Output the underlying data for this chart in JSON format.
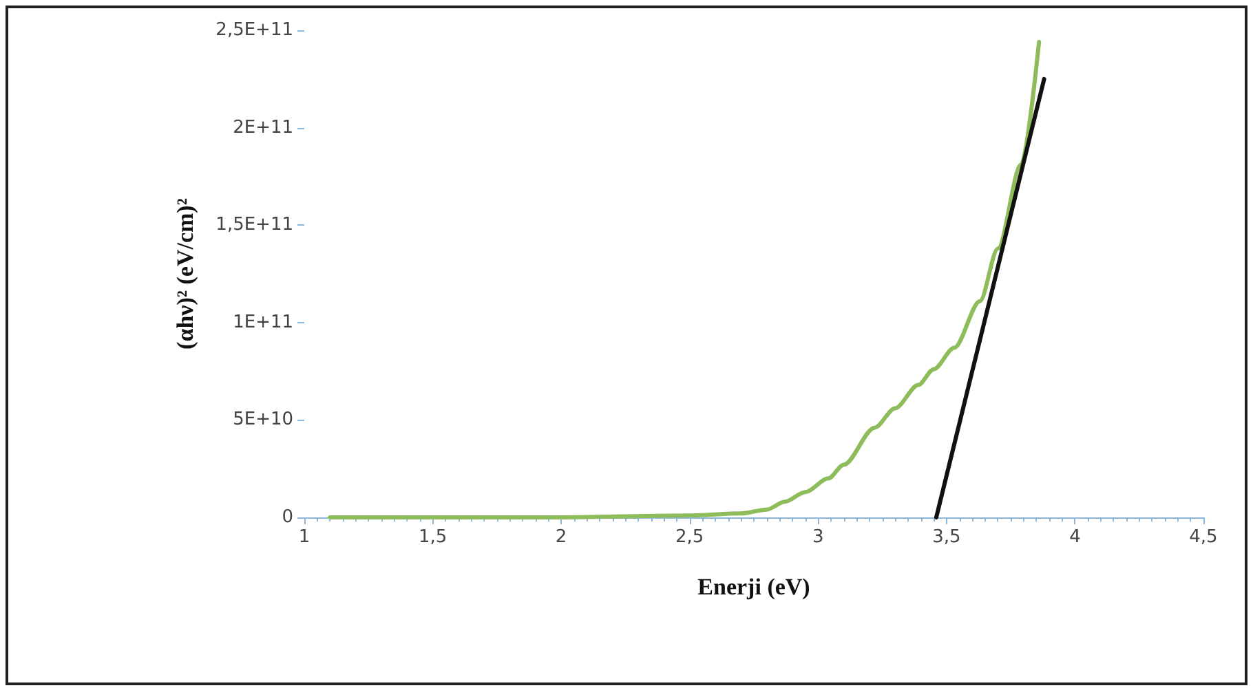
{
  "chart_data": {
    "type": "line",
    "xlabel": "Enerji (eV)",
    "ylabel": "(αhν)² (eV/cm)²",
    "series": [
      {
        "color": "#8fbc5a",
        "x": [
          1.1,
          1.5,
          2.0,
          2.5,
          2.7,
          2.8,
          2.87,
          2.95,
          3.04,
          3.1,
          3.22,
          3.3,
          3.39,
          3.45,
          3.53,
          3.63,
          3.7,
          3.79,
          3.86
        ],
        "values": [
          0,
          0,
          0,
          1000000000.0,
          2000000000.0,
          4000000000.0,
          8000000000.0,
          13000000000.0,
          20000000000.0,
          27000000000.0,
          46000000000.0,
          56000000000.0,
          68000000000.0,
          76000000000.0,
          87000000000.0,
          111000000000.0,
          138000000000.0,
          181000000000.0,
          244000000000.0
        ]
      },
      {
        "color": "#111111",
        "x": [
          3.46,
          3.88
        ],
        "values": [
          0,
          225000000000.0
        ]
      }
    ],
    "xlim": [
      1,
      4.5
    ],
    "xticks": [
      1,
      {
        "value": 1.5,
        "label": "1,5"
      },
      2,
      {
        "value": 2.5,
        "label": "2,5"
      },
      3,
      {
        "value": 3.5,
        "label": "3,5"
      },
      4,
      {
        "value": 4.5,
        "label": "4,5"
      }
    ],
    "ylim": [
      0,
      250000000000.0
    ],
    "yticks": [
      0,
      {
        "value": 50000000000.0,
        "label": "5E+10"
      },
      {
        "value": 100000000000.0,
        "label": "1E+11"
      },
      {
        "value": 150000000000.0,
        "label": "1,5E+11"
      },
      {
        "value": 200000000000.0,
        "label": "2E+11"
      },
      {
        "value": 250000000000.0,
        "label": "2,5E+11"
      }
    ],
    "grid": false,
    "marker": "none",
    "line_style": "solid"
  }
}
